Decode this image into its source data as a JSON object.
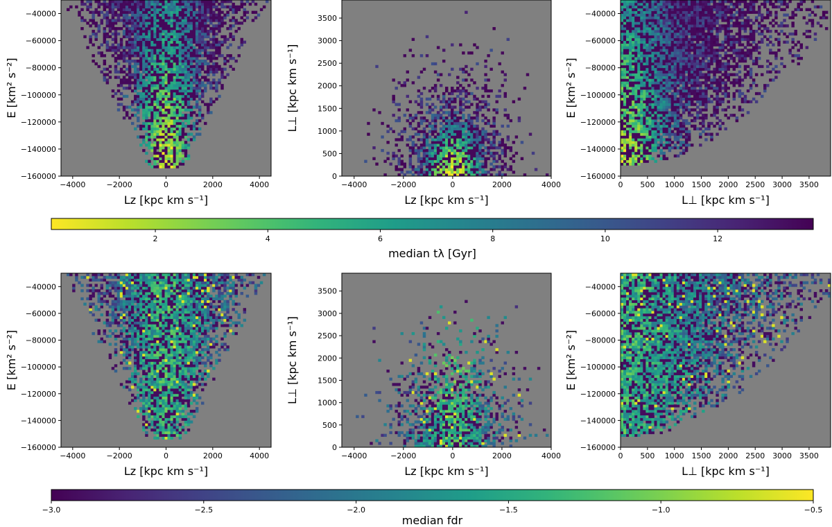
{
  "chart_data": [
    {
      "type": "heatmap",
      "id": "top-left",
      "row": "top",
      "x_col": "Lz",
      "y_col": "E",
      "xlabel": "Lz [kpc km s⁻¹]",
      "ylabel": "E [km² s⁻²]",
      "xlim": [
        -4500,
        4500
      ],
      "ylim": [
        -160000,
        -30000
      ],
      "xticks": [
        -4000,
        -2000,
        0,
        2000,
        4000
      ],
      "yticks": [
        -160000,
        -140000,
        -120000,
        -100000,
        -80000,
        -60000,
        -40000
      ],
      "color_quantity": "median tλ [Gyr]"
    },
    {
      "type": "heatmap",
      "id": "top-middle",
      "row": "top",
      "x_col": "Lz",
      "y_col": "Lperp",
      "xlabel": "Lz [kpc km s⁻¹]",
      "ylabel": "L⊥ [kpc km s⁻¹]",
      "xlim": [
        -4500,
        4000
      ],
      "ylim": [
        0,
        3900
      ],
      "xticks": [
        -4000,
        -2000,
        0,
        2000,
        4000
      ],
      "yticks": [
        0,
        500,
        1000,
        1500,
        2000,
        2500,
        3000,
        3500
      ],
      "color_quantity": "median tλ [Gyr]"
    },
    {
      "type": "heatmap",
      "id": "top-right",
      "row": "top",
      "x_col": "Lperp",
      "y_col": "E",
      "xlabel": "L⊥ [kpc km s⁻¹]",
      "ylabel": "E [km² s⁻²]",
      "xlim": [
        0,
        3900
      ],
      "ylim": [
        -160000,
        -30000
      ],
      "xticks": [
        0,
        500,
        1000,
        1500,
        2000,
        2500,
        3000,
        3500
      ],
      "yticks": [
        -160000,
        -140000,
        -120000,
        -100000,
        -80000,
        -60000,
        -40000
      ],
      "color_quantity": "median tλ [Gyr]"
    },
    {
      "type": "heatmap",
      "id": "bottom-left",
      "row": "bottom",
      "x_col": "Lz",
      "y_col": "E",
      "xlabel": "Lz [kpc km s⁻¹]",
      "ylabel": "E [km² s⁻²]",
      "xlim": [
        -4500,
        4500
      ],
      "ylim": [
        -160000,
        -30000
      ],
      "xticks": [
        -4000,
        -2000,
        0,
        2000,
        4000
      ],
      "yticks": [
        -160000,
        -140000,
        -120000,
        -100000,
        -80000,
        -60000,
        -40000
      ],
      "color_quantity": "median fdr"
    },
    {
      "type": "heatmap",
      "id": "bottom-middle",
      "row": "bottom",
      "x_col": "Lz",
      "y_col": "Lperp",
      "xlabel": "Lz [kpc km s⁻¹]",
      "ylabel": "L⊥ [kpc km s⁻¹]",
      "xlim": [
        -4500,
        4000
      ],
      "ylim": [
        0,
        3900
      ],
      "xticks": [
        -4000,
        -2000,
        0,
        2000,
        4000
      ],
      "yticks": [
        0,
        500,
        1000,
        1500,
        2000,
        2500,
        3000,
        3500
      ],
      "color_quantity": "median fdr"
    },
    {
      "type": "heatmap",
      "id": "bottom-right",
      "row": "bottom",
      "x_col": "Lperp",
      "y_col": "E",
      "xlabel": "L⊥ [kpc km s⁻¹]",
      "ylabel": "E [km² s⁻²]",
      "xlim": [
        0,
        3900
      ],
      "ylim": [
        -160000,
        -30000
      ],
      "xticks": [
        0,
        500,
        1000,
        1500,
        2000,
        2500,
        3000,
        3500
      ],
      "yticks": [
        -160000,
        -140000,
        -120000,
        -100000,
        -80000,
        -60000,
        -40000
      ],
      "color_quantity": "median fdr"
    }
  ],
  "colorbars": [
    {
      "id": "top",
      "label": "median tλ [Gyr]",
      "cmap": "viridis",
      "reversed": true,
      "range": [
        0.15,
        13.7
      ],
      "ticks": [
        2,
        4,
        6,
        8,
        10,
        12
      ]
    },
    {
      "id": "bottom",
      "label": "median fdr",
      "cmap": "viridis",
      "reversed": false,
      "range": [
        -3.0,
        -0.5
      ],
      "ticks": [
        -3.0,
        -2.5,
        -2.0,
        -1.5,
        -1.0,
        -0.5
      ],
      "tick_labels": [
        "−3.0",
        "−2.5",
        "−2.0",
        "−1.5",
        "−1.0",
        "−0.5"
      ]
    }
  ],
  "colors": {
    "panel_bg": "#808080",
    "viridis_dark": "#440154",
    "viridis_teal": "#21918c",
    "viridis_green": "#5ec962",
    "viridis_yellow": "#fde725"
  }
}
